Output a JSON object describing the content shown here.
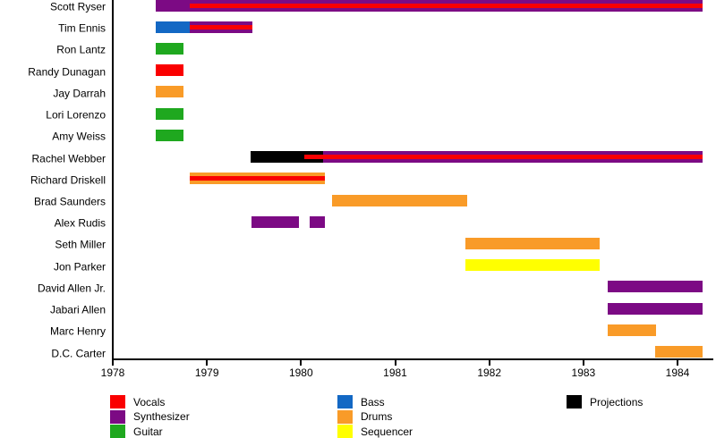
{
  "legend": {
    "columns": [
      {
        "items": [
          {
            "label": "Vocals",
            "role": "Vocals"
          },
          {
            "label": "Synthesizer",
            "role": "Synthesizer"
          },
          {
            "label": "Guitar",
            "role": "Guitar"
          }
        ]
      },
      {
        "items": [
          {
            "label": "Bass",
            "role": "Bass"
          },
          {
            "label": "Drums",
            "role": "Drums"
          },
          {
            "label": "Sequencer",
            "role": "Sequencer"
          }
        ]
      },
      {
        "items": [
          {
            "label": "Projections",
            "role": "Projections"
          }
        ]
      }
    ]
  },
  "chart_data": {
    "type": "timeline",
    "title": "",
    "xlabel": "",
    "ylabel": "",
    "grid": false,
    "x_axis": {
      "min": 1978,
      "max": 1984.35,
      "ticks": [
        "1978",
        "1979",
        "1980",
        "1981",
        "1982",
        "1983",
        "1984"
      ]
    },
    "colors": {
      "Vocals": "#fa0000",
      "Synthesizer": "#7c0a84",
      "Guitar": "#1fa81f",
      "Bass": "#1368c4",
      "Drums": "#f99b28",
      "Sequencer": "#ffff00",
      "Projections": "#000000"
    },
    "members": [
      {
        "name": "Scott Ryser",
        "segments": [
          {
            "role": "Synthesizer",
            "start": 1978.46,
            "end": 1984.27,
            "overlay": false
          },
          {
            "role": "Vocals",
            "start": 1978.82,
            "end": 1984.27,
            "overlay": true
          }
        ]
      },
      {
        "name": "Tim Ennis",
        "segments": [
          {
            "role": "Bass",
            "start": 1978.46,
            "end": 1978.82,
            "overlay": false
          },
          {
            "role": "Synthesizer",
            "start": 1978.82,
            "end": 1979.48,
            "overlay": false
          },
          {
            "role": "Vocals",
            "start": 1978.82,
            "end": 1979.48,
            "overlay": true
          }
        ]
      },
      {
        "name": "Ron Lantz",
        "segments": [
          {
            "role": "Guitar",
            "start": 1978.46,
            "end": 1978.75,
            "overlay": false
          }
        ]
      },
      {
        "name": "Randy Dunagan",
        "segments": [
          {
            "role": "Vocals",
            "start": 1978.46,
            "end": 1978.75,
            "overlay": false
          }
        ]
      },
      {
        "name": "Jay Darrah",
        "segments": [
          {
            "role": "Drums",
            "start": 1978.46,
            "end": 1978.75,
            "overlay": false
          }
        ]
      },
      {
        "name": "Lori Lorenzo",
        "segments": [
          {
            "role": "Guitar",
            "start": 1978.46,
            "end": 1978.75,
            "overlay": false
          }
        ]
      },
      {
        "name": "Amy Weiss",
        "segments": [
          {
            "role": "Guitar",
            "start": 1978.46,
            "end": 1978.75,
            "overlay": false
          }
        ]
      },
      {
        "name": "Rachel Webber",
        "segments": [
          {
            "role": "Projections",
            "start": 1979.46,
            "end": 1980.23,
            "overlay": false
          },
          {
            "role": "Synthesizer",
            "start": 1980.23,
            "end": 1984.27,
            "overlay": false
          },
          {
            "role": "Vocals",
            "start": 1980.03,
            "end": 1984.27,
            "overlay": true
          }
        ]
      },
      {
        "name": "Richard Driskell",
        "segments": [
          {
            "role": "Drums",
            "start": 1978.82,
            "end": 1980.25,
            "overlay": false
          },
          {
            "role": "Vocals",
            "start": 1978.82,
            "end": 1980.25,
            "overlay": true
          }
        ]
      },
      {
        "name": "Brad Saunders",
        "segments": [
          {
            "role": "Drums",
            "start": 1980.33,
            "end": 1981.77,
            "overlay": false
          }
        ]
      },
      {
        "name": "Alex Rudis",
        "segments": [
          {
            "role": "Synthesizer",
            "start": 1979.47,
            "end": 1979.98,
            "overlay": false
          },
          {
            "role": "Synthesizer",
            "start": 1980.09,
            "end": 1980.25,
            "overlay": false
          }
        ]
      },
      {
        "name": "Seth Miller",
        "segments": [
          {
            "role": "Drums",
            "start": 1981.75,
            "end": 1983.17,
            "overlay": false
          }
        ]
      },
      {
        "name": "Jon Parker",
        "segments": [
          {
            "role": "Sequencer",
            "start": 1981.75,
            "end": 1983.17,
            "overlay": false
          }
        ]
      },
      {
        "name": "David Allen Jr.",
        "segments": [
          {
            "role": "Synthesizer",
            "start": 1983.26,
            "end": 1984.27,
            "overlay": false
          }
        ]
      },
      {
        "name": "Jabari Allen",
        "segments": [
          {
            "role": "Synthesizer",
            "start": 1983.26,
            "end": 1984.27,
            "overlay": false
          }
        ]
      },
      {
        "name": "Marc Henry",
        "segments": [
          {
            "role": "Drums",
            "start": 1983.26,
            "end": 1983.77,
            "overlay": false
          }
        ]
      },
      {
        "name": "D.C. Carter",
        "segments": [
          {
            "role": "Drums",
            "start": 1983.76,
            "end": 1984.27,
            "overlay": false
          }
        ]
      }
    ]
  }
}
